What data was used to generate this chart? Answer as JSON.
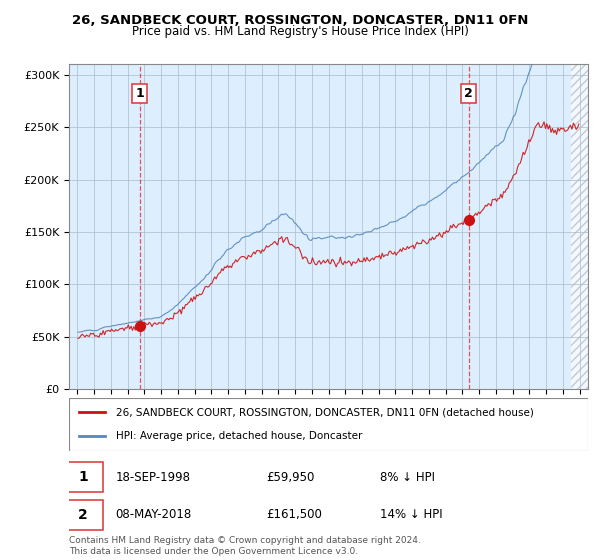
{
  "title": "26, SANDBECK COURT, ROSSINGTON, DONCASTER, DN11 0FN",
  "subtitle": "Price paid vs. HM Land Registry's House Price Index (HPI)",
  "sale1_date_label": "18-SEP-1998",
  "sale1_price": 59950,
  "sale1_label": "8% ↓ HPI",
  "sale2_date_label": "08-MAY-2018",
  "sale2_price": 161500,
  "sale2_label": "14% ↓ HPI",
  "sale1_x": 1998.72,
  "sale2_x": 2018.37,
  "legend_line1": "26, SANDBECK COURT, ROSSINGTON, DONCASTER, DN11 0FN (detached house)",
  "legend_line2": "HPI: Average price, detached house, Doncaster",
  "footer": "Contains HM Land Registry data © Crown copyright and database right 2024.\nThis data is licensed under the Open Government Licence v3.0.",
  "hpi_color": "#5588bb",
  "price_color": "#cc1111",
  "dashed_color": "#dd4444",
  "ylim_min": 0,
  "ylim_max": 310000,
  "xlim_min": 1994.5,
  "xlim_max": 2025.5,
  "yticks": [
    0,
    50000,
    100000,
    150000,
    200000,
    250000,
    300000
  ],
  "ytick_labels": [
    "£0",
    "£50K",
    "£100K",
    "£150K",
    "£200K",
    "£250K",
    "£300K"
  ],
  "background_color": "#ffffff",
  "plot_bg_color": "#ddeeff",
  "grid_color": "#aabbcc"
}
